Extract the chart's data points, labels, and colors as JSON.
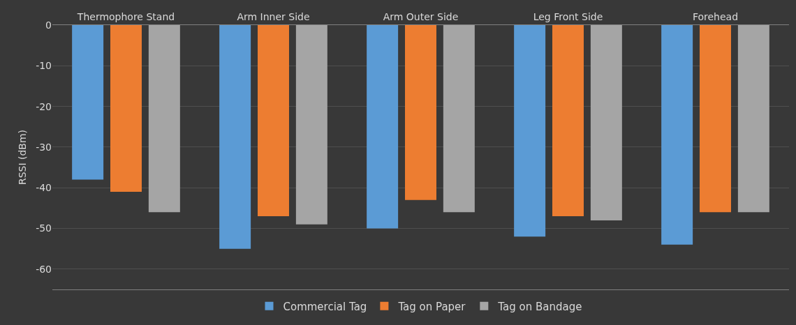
{
  "chart_data": {
    "type": "bar",
    "ylabel": "RSSI (dBm)",
    "categories": [
      "Thermophore Stand",
      "Arm Inner Side",
      "Arm Outer Side",
      "Leg Front Side",
      "Forehead"
    ],
    "series": [
      {
        "name": "Commercial Tag",
        "color": "#5b9bd5",
        "values": [
          -38,
          -55,
          -50,
          -52,
          -54
        ]
      },
      {
        "name": "Tag on Paper",
        "color": "#ed7d31",
        "values": [
          -41,
          -47,
          -43,
          -47,
          -46
        ]
      },
      {
        "name": "Tag on Bandage",
        "color": "#a5a5a5",
        "values": [
          -46,
          -49,
          -46,
          -48,
          -46
        ]
      }
    ],
    "ylim": [
      -65,
      0
    ],
    "yticks": [
      0,
      -10,
      -20,
      -30,
      -40,
      -50,
      -60
    ],
    "grid": "y",
    "legend": "bottom"
  }
}
